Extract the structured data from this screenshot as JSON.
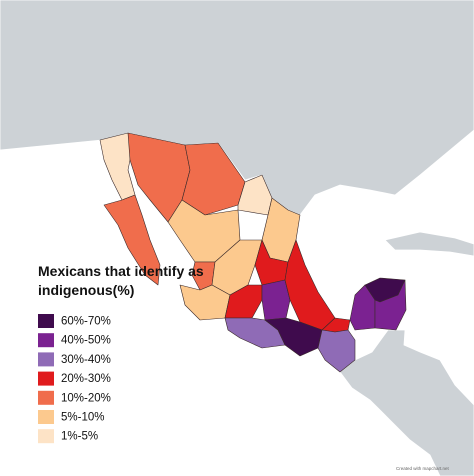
{
  "title": [
    "Mexicans that identify as",
    "indigenous(%)"
  ],
  "legend": {
    "items": [
      {
        "label": "60%-70%",
        "color": "#3f0b4d"
      },
      {
        "label": "40%-50%",
        "color": "#7b2291"
      },
      {
        "label": "30%-40%",
        "color": "#8f6bb6"
      },
      {
        "label": "20%-30%",
        "color": "#e01b1d"
      },
      {
        "label": "10%-20%",
        "color": "#f06d4c"
      },
      {
        "label": "5%-10%",
        "color": "#fcc98e"
      },
      {
        "label": "1%-5%",
        "color": "#fde3c6"
      }
    ]
  },
  "credit": "Created with mapchart.net"
}
